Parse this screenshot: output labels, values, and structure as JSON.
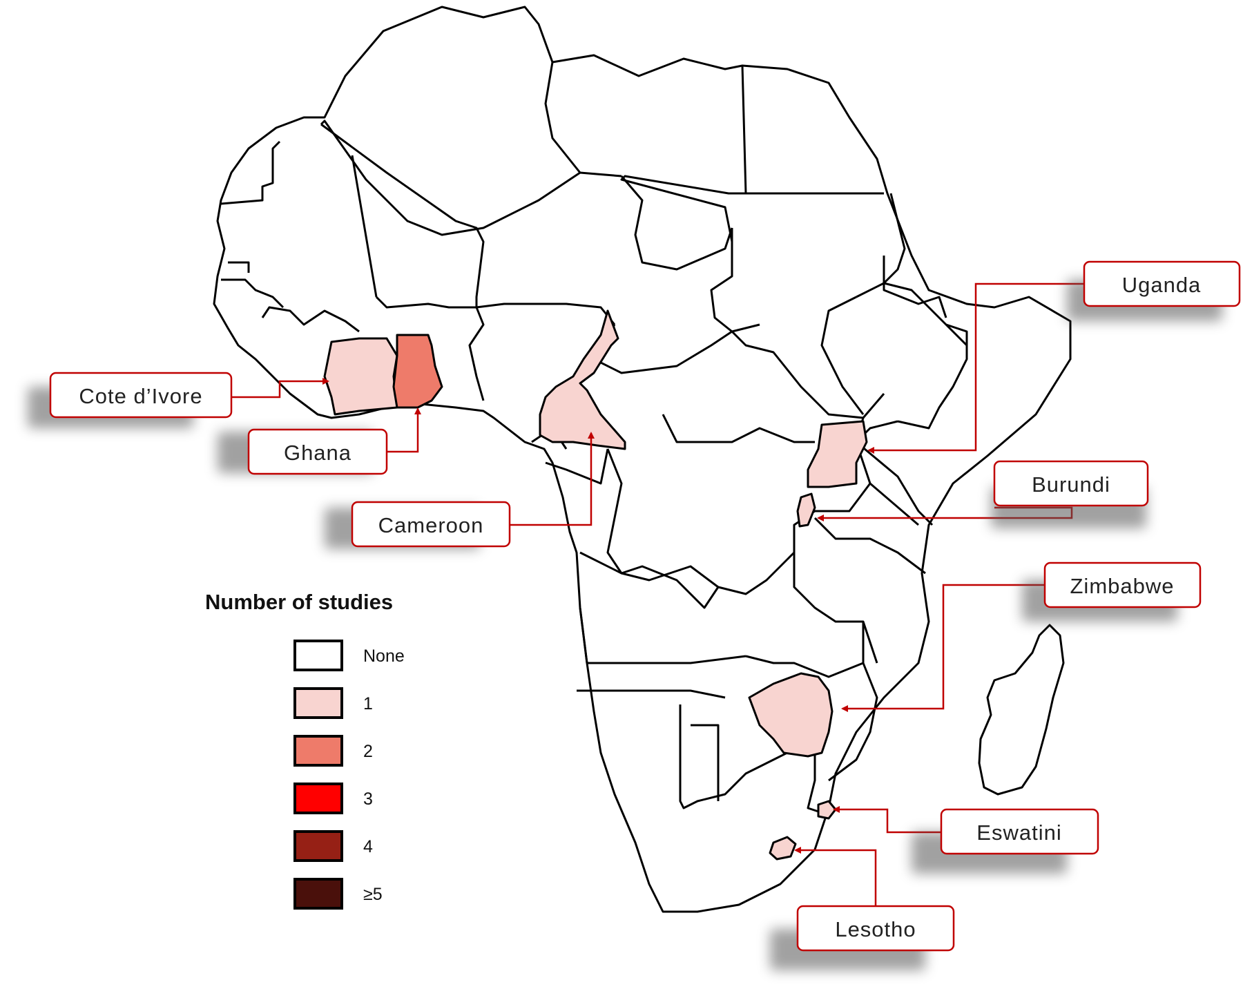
{
  "colors": {
    "none": "#ffffff",
    "one": "#f8d4d0",
    "two": "#ee7b6a",
    "three": "#ff0000",
    "four": "#962015",
    "five_plus": "#4a100b",
    "callout_border": "#c00000"
  },
  "legend": {
    "title": "Number of studies",
    "items": [
      {
        "label": "None",
        "color": "#ffffff"
      },
      {
        "label": "1",
        "color": "#f8d4d0"
      },
      {
        "label": "2",
        "color": "#ee7b6a"
      },
      {
        "label": "3",
        "color": "#ff0000"
      },
      {
        "label": "4",
        "color": "#962015"
      },
      {
        "label": "≥5",
        "color": "#4a100b"
      }
    ]
  },
  "highlighted_countries": [
    {
      "name": "Cote d'Ivore",
      "studies": 1
    },
    {
      "name": "Ghana",
      "studies": 2
    },
    {
      "name": "Cameroon",
      "studies": 1
    },
    {
      "name": "Uganda",
      "studies": 1
    },
    {
      "name": "Burundi",
      "studies": 1
    },
    {
      "name": "Zimbabwe",
      "studies": 1
    },
    {
      "name": "Eswatini",
      "studies": 1
    },
    {
      "name": "Lesotho",
      "studies": 1
    }
  ],
  "callouts": {
    "cote_divoire": "Cote d’Ivore",
    "ghana": "Ghana",
    "cameroon": "Cameroon",
    "uganda": "Uganda",
    "burundi": "Burundi",
    "zimbabwe": "Zimbabwe",
    "eswatini": "Eswatini",
    "lesotho": "Lesotho"
  }
}
